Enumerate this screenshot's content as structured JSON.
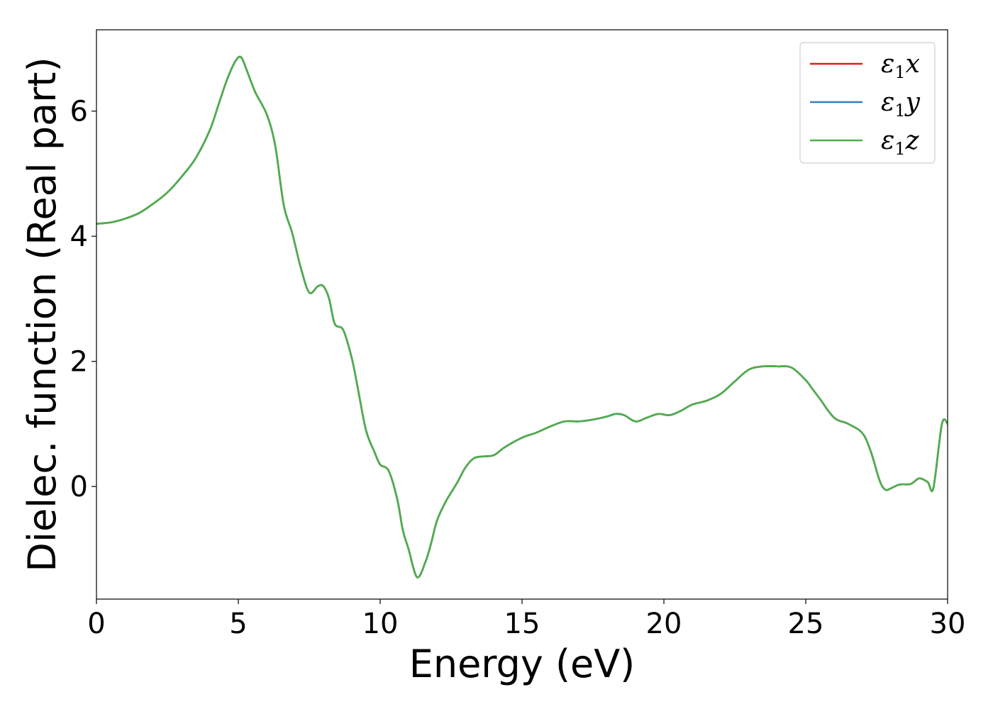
{
  "chart_data": {
    "type": "line",
    "title": "",
    "xlabel": "Energy (eV)",
    "ylabel": "Dielec. function (Real part)",
    "xlim": [
      0,
      30
    ],
    "ylim": [
      -1.8,
      7.3
    ],
    "xticks": [
      0,
      5,
      10,
      15,
      20,
      25,
      30
    ],
    "xtick_labels": [
      "0",
      "5",
      "10",
      "15",
      "20",
      "25",
      "30"
    ],
    "yticks": [
      0,
      2,
      4,
      6
    ],
    "ytick_labels": [
      "0",
      "2",
      "4",
      "6"
    ],
    "grid": false,
    "legend_position": "top-right",
    "x": [
      0,
      0.5,
      1,
      1.5,
      2,
      2.5,
      3,
      3.5,
      4,
      4.3,
      4.6,
      4.9,
      5.1,
      5.3,
      5.6,
      6.0,
      6.3,
      6.6,
      6.9,
      7.2,
      7.5,
      7.8,
      8.0,
      8.2,
      8.4,
      8.7,
      9.0,
      9.2,
      9.5,
      9.8,
      10.0,
      10.3,
      10.6,
      10.8,
      11.0,
      11.3,
      11.6,
      11.8,
      12.0,
      12.3,
      12.7,
      13.0,
      13.3,
      13.6,
      14.0,
      14.4,
      15.0,
      15.5,
      16.0,
      16.5,
      17.0,
      17.5,
      18.0,
      18.3,
      18.6,
      19.0,
      19.4,
      19.8,
      20.2,
      20.6,
      21.0,
      21.5,
      22.0,
      22.5,
      23.0,
      23.5,
      24.0,
      24.5,
      25.0,
      25.2,
      25.5,
      26.0,
      26.5,
      27.0,
      27.3,
      27.6,
      27.8,
      28.0,
      28.3,
      28.7,
      29.0,
      29.3,
      29.5,
      29.8,
      30.0
    ],
    "series": [
      {
        "name": "ε1x",
        "color": "#e41a1c",
        "values": [
          4.2,
          4.22,
          4.28,
          4.37,
          4.52,
          4.7,
          4.95,
          5.25,
          5.7,
          6.1,
          6.5,
          6.8,
          6.86,
          6.65,
          6.3,
          5.95,
          5.45,
          4.5,
          4.05,
          3.5,
          3.1,
          3.2,
          3.2,
          3.0,
          2.6,
          2.5,
          2.05,
          1.6,
          0.9,
          0.55,
          0.35,
          0.25,
          -0.2,
          -0.7,
          -1.0,
          -1.45,
          -1.2,
          -0.9,
          -0.55,
          -0.25,
          0.05,
          0.3,
          0.45,
          0.48,
          0.5,
          0.63,
          0.78,
          0.86,
          0.96,
          1.04,
          1.04,
          1.07,
          1.12,
          1.16,
          1.14,
          1.04,
          1.1,
          1.16,
          1.14,
          1.21,
          1.31,
          1.37,
          1.48,
          1.68,
          1.87,
          1.92,
          1.92,
          1.9,
          1.7,
          1.58,
          1.4,
          1.1,
          1.0,
          0.85,
          0.55,
          0.1,
          -0.05,
          -0.03,
          0.03,
          0.04,
          0.13,
          0.07,
          -0.02,
          1.0,
          1.0
        ]
      },
      {
        "name": "ε1y",
        "color": "#377eb8",
        "values": [
          4.2,
          4.22,
          4.28,
          4.37,
          4.52,
          4.7,
          4.95,
          5.25,
          5.7,
          6.1,
          6.5,
          6.8,
          6.86,
          6.65,
          6.3,
          5.95,
          5.45,
          4.5,
          4.05,
          3.5,
          3.1,
          3.2,
          3.2,
          3.0,
          2.6,
          2.5,
          2.05,
          1.6,
          0.9,
          0.55,
          0.35,
          0.25,
          -0.2,
          -0.7,
          -1.0,
          -1.45,
          -1.2,
          -0.9,
          -0.55,
          -0.25,
          0.05,
          0.3,
          0.45,
          0.48,
          0.5,
          0.63,
          0.78,
          0.86,
          0.96,
          1.04,
          1.04,
          1.07,
          1.12,
          1.16,
          1.14,
          1.04,
          1.1,
          1.16,
          1.14,
          1.21,
          1.31,
          1.37,
          1.48,
          1.68,
          1.87,
          1.92,
          1.92,
          1.9,
          1.7,
          1.58,
          1.4,
          1.1,
          1.0,
          0.85,
          0.55,
          0.1,
          -0.05,
          -0.03,
          0.03,
          0.04,
          0.13,
          0.07,
          -0.02,
          1.0,
          1.0
        ]
      },
      {
        "name": "ε1z",
        "color": "#4daf4a",
        "values": [
          4.2,
          4.22,
          4.28,
          4.37,
          4.52,
          4.7,
          4.95,
          5.25,
          5.7,
          6.1,
          6.5,
          6.8,
          6.86,
          6.65,
          6.3,
          5.95,
          5.45,
          4.5,
          4.05,
          3.5,
          3.1,
          3.2,
          3.2,
          3.0,
          2.6,
          2.5,
          2.05,
          1.6,
          0.9,
          0.55,
          0.35,
          0.25,
          -0.2,
          -0.7,
          -1.0,
          -1.45,
          -1.2,
          -0.9,
          -0.55,
          -0.25,
          0.05,
          0.3,
          0.45,
          0.48,
          0.5,
          0.63,
          0.78,
          0.86,
          0.96,
          1.04,
          1.04,
          1.07,
          1.12,
          1.16,
          1.14,
          1.04,
          1.1,
          1.16,
          1.14,
          1.21,
          1.31,
          1.37,
          1.48,
          1.68,
          1.87,
          1.92,
          1.92,
          1.9,
          1.7,
          1.58,
          1.4,
          1.1,
          1.0,
          0.85,
          0.55,
          0.1,
          -0.05,
          -0.03,
          0.03,
          0.04,
          0.13,
          0.07,
          -0.02,
          1.0,
          1.0
        ]
      }
    ],
    "legend": [
      {
        "base": "ε",
        "sub": "1",
        "var": "x",
        "color": "#e41a1c"
      },
      {
        "base": "ε",
        "sub": "1",
        "var": "y",
        "color": "#377eb8"
      },
      {
        "base": "ε",
        "sub": "1",
        "var": "z",
        "color": "#4daf4a"
      }
    ]
  }
}
